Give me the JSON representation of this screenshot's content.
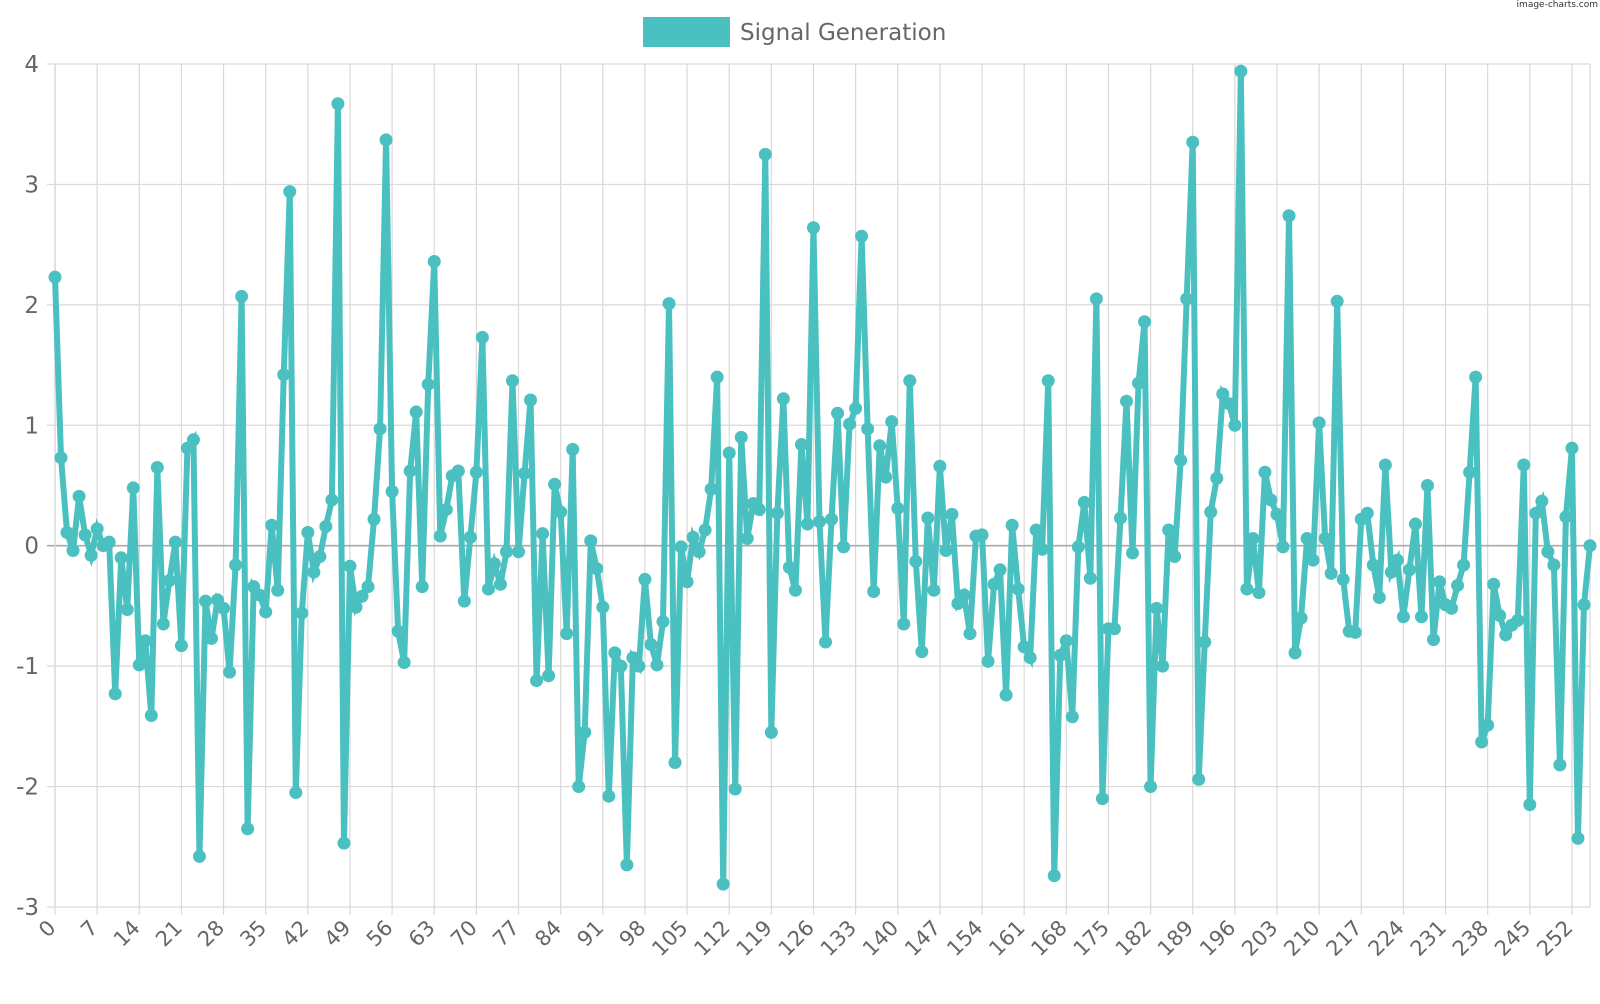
{
  "watermark": "image-charts.com",
  "colors": {
    "series": "#4bc0c0",
    "grid": "#d9d9d9",
    "zero_line": "#aaaaaa",
    "text": "#666666"
  },
  "chart_data": {
    "type": "line",
    "title": "",
    "legend": {
      "position": "top-center",
      "entries": [
        "Signal Generation"
      ]
    },
    "xlabel": "",
    "ylabel": "",
    "xlim": [
      0,
      255
    ],
    "ylim": [
      -3,
      4
    ],
    "grid": true,
    "y_ticks": [
      "-3",
      "-2",
      "-1",
      "0",
      "1",
      "2",
      "3",
      "4"
    ],
    "x_ticks": [
      "0",
      "7",
      "14",
      "21",
      "28",
      "35",
      "42",
      "49",
      "56",
      "63",
      "70",
      "77",
      "84",
      "91",
      "98",
      "105",
      "112",
      "119",
      "126",
      "133",
      "140",
      "147",
      "154",
      "161",
      "168",
      "175",
      "182",
      "189",
      "196",
      "203",
      "210",
      "217",
      "224",
      "231",
      "238",
      "245",
      "252"
    ],
    "series": [
      {
        "name": "Signal Generation",
        "x": [
          0,
          1,
          2,
          3,
          4,
          5,
          6,
          7,
          8,
          9,
          10,
          11,
          12,
          13,
          14,
          15,
          16,
          17,
          18,
          19,
          20,
          21,
          22,
          23,
          24,
          25,
          26,
          27,
          28,
          29,
          30,
          31,
          32,
          33,
          34,
          35,
          36,
          37,
          38,
          39,
          40,
          41,
          42,
          43,
          44,
          45,
          46,
          47,
          48,
          49,
          50,
          51,
          52,
          53,
          54,
          55,
          56,
          57,
          58,
          59,
          60,
          61,
          62,
          63,
          64,
          65,
          66,
          67,
          68,
          69,
          70,
          71,
          72,
          73,
          74,
          75,
          76,
          77,
          78,
          79,
          80,
          81,
          82,
          83,
          84,
          85,
          86,
          87,
          88,
          89,
          90,
          91,
          92,
          93,
          94,
          95,
          96,
          97,
          98,
          99,
          100,
          101,
          102,
          103,
          104,
          105,
          106,
          107,
          108,
          109,
          110,
          111,
          112,
          113,
          114,
          115,
          116,
          117,
          118,
          119,
          120,
          121,
          122,
          123,
          124,
          125,
          126,
          127,
          128,
          129,
          130,
          131,
          132,
          133,
          134,
          135,
          136,
          137,
          138,
          139,
          140,
          141,
          142,
          143,
          144,
          145,
          146,
          147,
          148,
          149,
          150,
          151,
          152,
          153,
          154,
          155,
          156,
          157,
          158,
          159,
          160,
          161,
          162,
          163,
          164,
          165,
          166,
          167,
          168,
          169,
          170,
          171,
          172,
          173,
          174,
          175,
          176,
          177,
          178,
          179,
          180,
          181,
          182,
          183,
          184,
          185,
          186,
          187,
          188,
          189,
          190,
          191,
          192,
          193,
          194,
          195,
          196,
          197,
          198,
          199,
          200,
          201,
          202,
          203,
          204,
          205,
          206,
          207,
          208,
          209,
          210,
          211,
          212,
          213,
          214,
          215,
          216,
          217,
          218,
          219,
          220,
          221,
          222,
          223,
          224,
          225,
          226,
          227,
          228,
          229,
          230,
          231,
          232,
          233,
          234,
          235,
          236,
          237,
          238,
          239,
          240,
          241,
          242,
          243,
          244,
          245,
          246,
          247,
          248,
          249,
          250,
          251,
          252,
          253,
          254,
          255
        ],
        "values": [
          2.23,
          0.73,
          0.11,
          -0.04,
          0.41,
          0.09,
          -0.08,
          0.14,
          0.0,
          0.03,
          -1.23,
          -0.1,
          -0.53,
          0.48,
          -0.99,
          -0.79,
          -1.41,
          0.65,
          -0.65,
          -0.29,
          0.03,
          -0.83,
          0.81,
          0.88,
          -2.58,
          -0.46,
          -0.77,
          -0.45,
          -0.52,
          -1.05,
          -0.16,
          2.07,
          -2.35,
          -0.34,
          -0.41,
          -0.55,
          0.17,
          -0.37,
          1.42,
          2.94,
          -2.05,
          -0.56,
          0.11,
          -0.22,
          -0.09,
          0.16,
          0.38,
          3.67,
          -2.47,
          -0.17,
          -0.51,
          -0.42,
          -0.34,
          0.22,
          0.97,
          3.37,
          0.45,
          -0.71,
          -0.97,
          0.62,
          1.11,
          -0.34,
          1.34,
          2.36,
          0.08,
          0.3,
          0.58,
          0.62,
          -0.46,
          0.07,
          0.61,
          1.73,
          -0.36,
          -0.15,
          -0.32,
          -0.05,
          1.37,
          -0.05,
          0.6,
          1.21,
          -1.12,
          0.1,
          -1.08,
          0.51,
          0.28,
          -0.73,
          0.8,
          -2.0,
          -1.55,
          0.04,
          -0.19,
          -0.51,
          -2.08,
          -0.89,
          -1.0,
          -2.65,
          -0.93,
          -1.0,
          -0.28,
          -0.82,
          -0.99,
          -0.63,
          2.01,
          -1.8,
          -0.01,
          -0.3,
          0.07,
          -0.05,
          0.13,
          0.47,
          1.4,
          -2.81,
          0.77,
          -2.02,
          0.9,
          0.06,
          0.35,
          0.3,
          3.25,
          -1.55,
          0.27,
          1.22,
          -0.18,
          -0.37,
          0.84,
          0.18,
          2.64,
          0.2,
          -0.8,
          0.22,
          1.1,
          -0.01,
          1.01,
          1.14,
          2.57,
          0.97,
          -0.38,
          0.83,
          0.57,
          1.03,
          0.31,
          -0.65,
          1.37,
          -0.13,
          -0.88,
          0.23,
          -0.37,
          0.66,
          -0.04,
          0.26,
          -0.48,
          -0.41,
          -0.73,
          0.08,
          0.09,
          -0.96,
          -0.32,
          -0.2,
          -1.24,
          0.17,
          -0.36,
          -0.84,
          -0.93,
          0.13,
          -0.03,
          1.37,
          -2.74,
          -0.91,
          -0.79,
          -1.42,
          -0.01,
          0.36,
          -0.27,
          2.05,
          -2.1,
          -0.69,
          -0.69,
          0.23,
          1.2,
          -0.06,
          1.35,
          1.86,
          -2.0,
          -0.52,
          -1.0,
          0.13,
          -0.09,
          0.71,
          2.05,
          3.35,
          -1.94,
          -0.8,
          0.28,
          0.56,
          1.26,
          1.18,
          1.0,
          3.94,
          -0.36,
          0.06,
          -0.39,
          0.61,
          0.38,
          0.26,
          -0.01,
          2.74,
          -0.89,
          -0.6,
          0.06,
          -0.12,
          1.02,
          0.06,
          -0.23,
          2.03,
          -0.28,
          -0.71,
          -0.72,
          0.22,
          0.27,
          -0.16,
          -0.43,
          0.67,
          -0.22,
          -0.12,
          -0.59,
          -0.2,
          0.18,
          -0.59,
          0.5,
          -0.78,
          -0.3,
          -0.49,
          -0.52,
          -0.33,
          -0.16,
          0.61,
          1.4,
          -1.63,
          -1.49,
          -0.32,
          -0.58,
          -0.74,
          -0.66,
          -0.62,
          0.67,
          -2.15,
          0.27,
          0.37,
          -0.05,
          -0.16,
          -1.82,
          0.24,
          0.81,
          -2.43,
          -0.49,
          0.0
        ]
      }
    ]
  }
}
